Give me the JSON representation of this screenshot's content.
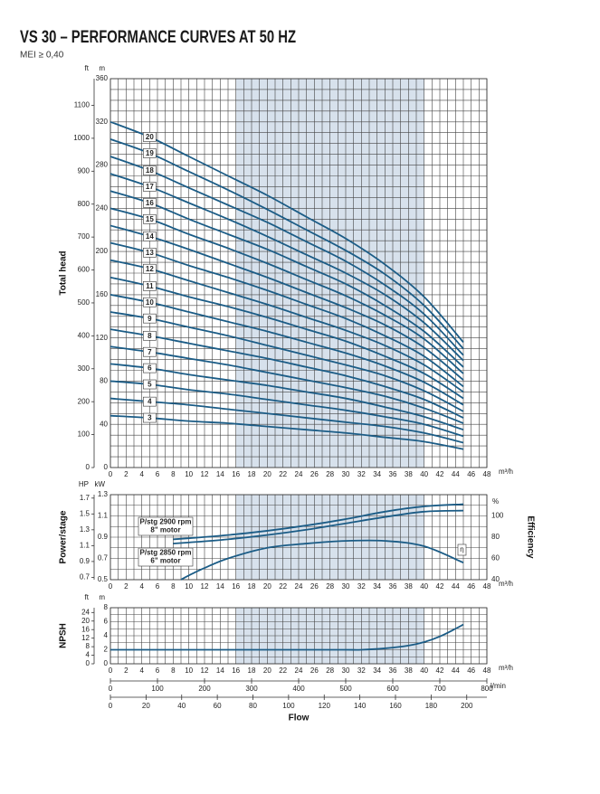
{
  "header": {
    "title": "VS 30 – PERFORMANCE CURVES AT 50 HZ",
    "subtitle": "MEI ≥ 0,40"
  },
  "chart_data": [
    {
      "type": "line",
      "ylabel": "Total head",
      "xunit": "m³/h",
      "yunit": "m",
      "y2unit": "ft",
      "xlim": [
        0,
        48
      ],
      "xticks": [
        0,
        2,
        4,
        6,
        8,
        10,
        12,
        14,
        16,
        18,
        20,
        22,
        24,
        26,
        28,
        30,
        32,
        34,
        36,
        38,
        40,
        42,
        44,
        46,
        48
      ],
      "ylim": [
        0,
        360
      ],
      "yticks": [
        0,
        40,
        80,
        120,
        160,
        200,
        240,
        280,
        320,
        360
      ],
      "y2lim": [
        0,
        1181
      ],
      "y2ticks": [
        0,
        100,
        200,
        300,
        400,
        500,
        600,
        700,
        800,
        900,
        1000,
        1100
      ],
      "highlight_xrange": [
        16,
        40
      ],
      "grid": true,
      "grid_divisions": {
        "x": 2,
        "y": 4
      },
      "color": "#1b5c86",
      "x": [
        0,
        5,
        10,
        15,
        20,
        25,
        30,
        35,
        40,
        45
      ],
      "series": [
        {
          "name": "3",
          "values": [
            48,
            46,
            43,
            41,
            38,
            35,
            32,
            28,
            24,
            17
          ]
        },
        {
          "name": "4",
          "values": [
            64,
            61,
            58,
            54,
            50,
            46,
            42,
            38,
            32,
            23
          ]
        },
        {
          "name": "5",
          "values": [
            80,
            77,
            72,
            68,
            63,
            58,
            53,
            47,
            40,
            29
          ]
        },
        {
          "name": "6",
          "values": [
            96,
            92,
            86,
            81,
            76,
            70,
            64,
            56,
            47,
            35
          ]
        },
        {
          "name": "7",
          "values": [
            112,
            107,
            101,
            95,
            88,
            81,
            74,
            66,
            55,
            41
          ]
        },
        {
          "name": "8",
          "values": [
            128,
            122,
            115,
            108,
            101,
            93,
            85,
            75,
            63,
            46
          ]
        },
        {
          "name": "9",
          "values": [
            144,
            138,
            130,
            122,
            113,
            104,
            95,
            85,
            71,
            52
          ]
        },
        {
          "name": "10",
          "values": [
            160,
            153,
            144,
            135,
            126,
            116,
            106,
            94,
            79,
            58
          ]
        },
        {
          "name": "11",
          "values": [
            176,
            168,
            158,
            149,
            139,
            128,
            117,
            103,
            87,
            64
          ]
        },
        {
          "name": "12",
          "values": [
            192,
            184,
            173,
            162,
            151,
            139,
            127,
            113,
            95,
            70
          ]
        },
        {
          "name": "13",
          "values": [
            208,
            199,
            187,
            176,
            164,
            151,
            138,
            122,
            103,
            75
          ]
        },
        {
          "name": "14",
          "values": [
            224,
            214,
            202,
            189,
            176,
            162,
            148,
            132,
            111,
            81
          ]
        },
        {
          "name": "15",
          "values": [
            240,
            230,
            216,
            203,
            189,
            174,
            159,
            141,
            119,
            87
          ]
        },
        {
          "name": "16",
          "values": [
            256,
            245,
            230,
            216,
            202,
            186,
            170,
            150,
            126,
            93
          ]
        },
        {
          "name": "17",
          "values": [
            272,
            260,
            245,
            230,
            214,
            197,
            180,
            160,
            134,
            99
          ]
        },
        {
          "name": "18",
          "values": [
            288,
            275,
            259,
            243,
            227,
            209,
            191,
            169,
            142,
            104
          ]
        },
        {
          "name": "19",
          "values": [
            304,
            291,
            274,
            257,
            239,
            220,
            201,
            179,
            150,
            110
          ]
        },
        {
          "name": "20",
          "values": [
            320,
            306,
            288,
            270,
            252,
            232,
            212,
            188,
            158,
            116
          ]
        }
      ]
    },
    {
      "type": "line",
      "ylabel": "Power/stage",
      "y2label": "Efficiency",
      "xunit": "m³/h",
      "yunit": "kW",
      "y3unit": "HP",
      "y2unit": "%",
      "xlim": [
        0,
        48
      ],
      "xticks": [
        0,
        2,
        4,
        6,
        8,
        10,
        12,
        14,
        16,
        18,
        20,
        22,
        24,
        26,
        28,
        30,
        32,
        34,
        36,
        38,
        40,
        42,
        44,
        46,
        48
      ],
      "ylim": [
        0.5,
        1.3
      ],
      "yticks": [
        0.5,
        0.7,
        0.9,
        1.1,
        1.3
      ],
      "y3lim": [
        0.6705,
        1.7433
      ],
      "y3ticks": [
        0.7,
        0.9,
        1.1,
        1.3,
        1.5,
        1.7
      ],
      "y2lim": [
        40,
        120
      ],
      "y2ticks": [
        40,
        60,
        80,
        100
      ],
      "highlight_xrange": [
        16,
        40
      ],
      "grid": true,
      "grid_divisions": {
        "x": 2,
        "y": 2
      },
      "color": "#1b5c86",
      "series": [
        {
          "name": "P/stg 2900 rpm",
          "note": "8\" motor",
          "x": [
            8,
            10,
            15,
            20,
            25,
            30,
            35,
            40,
            45
          ],
          "values": [
            0.88,
            0.89,
            0.92,
            0.96,
            1.01,
            1.07,
            1.14,
            1.19,
            1.21
          ]
        },
        {
          "name": "P/stg 2850 rpm",
          "note": "6\" motor",
          "x": [
            8,
            10,
            15,
            20,
            25,
            30,
            35,
            40,
            45
          ],
          "values": [
            0.84,
            0.85,
            0.88,
            0.92,
            0.97,
            1.03,
            1.09,
            1.14,
            1.15
          ]
        },
        {
          "name": "η",
          "axis": "y2",
          "x": [
            9,
            10,
            12,
            15,
            20,
            25,
            30,
            35,
            40,
            45
          ],
          "values": [
            40,
            44,
            51,
            60,
            70,
            74,
            76.5,
            76.5,
            71.5,
            56
          ]
        }
      ]
    },
    {
      "type": "line",
      "ylabel": "NPSH",
      "xunit": "m³/h",
      "yunit": "m",
      "y2unit": "ft",
      "xlabel": "Flow",
      "xlim": [
        0,
        48
      ],
      "xticks": [
        0,
        2,
        4,
        6,
        8,
        10,
        12,
        14,
        16,
        18,
        20,
        22,
        24,
        26,
        28,
        30,
        32,
        34,
        36,
        38,
        40,
        42,
        44,
        46,
        48
      ],
      "ylim": [
        0,
        8
      ],
      "yticks": [
        0,
        2,
        4,
        6,
        8
      ],
      "y2lim": [
        0,
        26.25
      ],
      "y2ticks": [
        0,
        4,
        8,
        12,
        16,
        20,
        24
      ],
      "highlight_xrange": [
        16,
        40
      ],
      "grid": true,
      "grid_divisions": {
        "x": 2,
        "y": 2
      },
      "color": "#1b5c86",
      "series": [
        {
          "x": [
            0,
            5,
            10,
            15,
            20,
            25,
            30,
            32,
            35,
            38,
            40,
            42,
            44,
            45
          ],
          "values": [
            2,
            2,
            2,
            2,
            2,
            2,
            2,
            2,
            2.2,
            2.6,
            3.1,
            3.9,
            5,
            5.6
          ]
        }
      ],
      "flow_axes": [
        {
          "unit": "l/min",
          "xlim": [
            0,
            800
          ],
          "xticks": [
            0,
            100,
            200,
            300,
            400,
            500,
            600,
            700,
            800
          ]
        },
        {
          "xlim": [
            0,
            211.3
          ],
          "xticks": [
            0,
            20,
            40,
            60,
            80,
            100,
            120,
            140,
            160,
            180,
            200
          ]
        }
      ]
    }
  ]
}
